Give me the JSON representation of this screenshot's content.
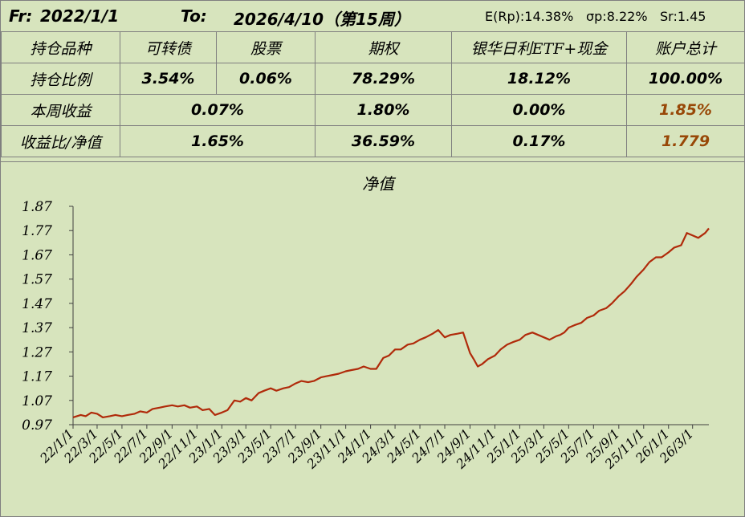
{
  "header": {
    "from_label": "Fr:",
    "from_date": "2022/1/1",
    "to_label": "To:",
    "to_date": "2026/4/10（第15周）",
    "expected_return": "E(Rp):14.38%",
    "sigma": "σp:8.22%",
    "sharpe": "Sr:1.45"
  },
  "table": {
    "headers": [
      "持仓品种",
      "可转债",
      "股票",
      "期权",
      "银华日利ETF+现金",
      "账户总计"
    ],
    "position_ratio": {
      "label": "持仓比例",
      "values": [
        "3.54%",
        "0.06%",
        "78.29%",
        "18.12%",
        "100.00%"
      ]
    },
    "weekly_return": {
      "label": "本周收益",
      "stocks_bonds": "0.07%",
      "options": "1.80%",
      "cash": "0.00%",
      "total": "1.85%"
    },
    "return_nav": {
      "label": "收益比/净值",
      "stocks_bonds": "1.65%",
      "options": "36.59%",
      "cash": "0.17%",
      "total": "1.779"
    }
  },
  "colors": {
    "line": "#b02a0a",
    "accent_text": "#984807",
    "background": "#d7e4bd"
  },
  "chart_data": {
    "type": "line",
    "title": "净值",
    "xlabel": "",
    "ylabel": "",
    "ylim": [
      0.97,
      1.87
    ],
    "yticks": [
      "0.97",
      "1.07",
      "1.17",
      "1.27",
      "1.37",
      "1.47",
      "1.57",
      "1.67",
      "1.77",
      "1.87"
    ],
    "xticks": [
      "22/1/1",
      "22/3/1",
      "22/5/1",
      "22/7/1",
      "22/9/1",
      "22/11/1",
      "23/1/1",
      "23/3/1",
      "23/5/1",
      "23/7/1",
      "23/9/1",
      "23/11/1",
      "24/1/1",
      "24/3/1",
      "24/5/1",
      "24/7/1",
      "24/9/1",
      "24/11/1",
      "25/1/1",
      "25/3/1",
      "25/5/1",
      "25/7/1",
      "25/9/1",
      "25/11/1",
      "26/1/1",
      "26/3/1"
    ],
    "grid": false,
    "legend": "none",
    "series": [
      {
        "x": [
          "2022-01-01",
          "2022-01-20",
          "2022-02-01",
          "2022-02-15",
          "2022-03-01",
          "2022-03-15",
          "2022-04-01",
          "2022-04-15",
          "2022-05-01",
          "2022-05-15",
          "2022-06-01",
          "2022-06-15",
          "2022-07-01",
          "2022-07-15",
          "2022-08-01",
          "2022-08-15",
          "2022-09-01",
          "2022-09-15",
          "2022-10-01",
          "2022-10-15",
          "2022-11-01",
          "2022-11-15",
          "2022-12-01",
          "2022-12-15",
          "2023-01-01",
          "2023-01-15",
          "2023-02-01",
          "2023-02-15",
          "2023-03-01",
          "2023-03-15",
          "2023-04-01",
          "2023-04-15",
          "2023-05-01",
          "2023-05-15",
          "2023-06-01",
          "2023-06-15",
          "2023-07-01",
          "2023-07-15",
          "2023-08-01",
          "2023-08-15",
          "2023-09-01",
          "2023-09-15",
          "2023-10-01",
          "2023-10-15",
          "2023-11-01",
          "2023-11-15",
          "2023-12-01",
          "2023-12-15",
          "2024-01-01",
          "2024-01-15",
          "2024-02-01",
          "2024-02-15",
          "2024-03-01",
          "2024-03-15",
          "2024-04-01",
          "2024-04-15",
          "2024-05-01",
          "2024-05-15",
          "2024-06-01",
          "2024-06-15",
          "2024-07-01",
          "2024-07-15",
          "2024-08-01",
          "2024-08-15",
          "2024-09-01",
          "2024-09-10",
          "2024-09-20",
          "2024-10-01",
          "2024-10-15",
          "2024-11-01",
          "2024-11-15",
          "2024-12-01",
          "2024-12-15",
          "2025-01-01",
          "2025-01-15",
          "2025-02-01",
          "2025-02-15",
          "2025-03-01",
          "2025-03-15",
          "2025-04-01",
          "2025-04-10",
          "2025-04-20",
          "2025-05-01",
          "2025-05-15",
          "2025-06-01",
          "2025-06-15",
          "2025-07-01",
          "2025-07-15",
          "2025-08-01",
          "2025-08-15",
          "2025-09-01",
          "2025-09-15",
          "2025-10-01",
          "2025-10-15",
          "2025-11-01",
          "2025-11-15",
          "2025-12-01",
          "2025-12-15",
          "2026-01-01",
          "2026-01-15",
          "2026-02-01",
          "2026-02-15",
          "2026-03-01",
          "2026-03-15",
          "2026-04-01",
          "2026-04-10"
        ],
        "values": [
          1.0,
          1.01,
          1.005,
          1.02,
          1.015,
          1.0,
          1.005,
          1.01,
          1.005,
          1.01,
          1.015,
          1.025,
          1.02,
          1.035,
          1.04,
          1.045,
          1.05,
          1.045,
          1.05,
          1.04,
          1.045,
          1.03,
          1.035,
          1.01,
          1.02,
          1.03,
          1.07,
          1.065,
          1.08,
          1.07,
          1.1,
          1.11,
          1.12,
          1.11,
          1.12,
          1.125,
          1.14,
          1.15,
          1.145,
          1.15,
          1.165,
          1.17,
          1.175,
          1.18,
          1.19,
          1.195,
          1.2,
          1.21,
          1.2,
          1.2,
          1.245,
          1.255,
          1.28,
          1.28,
          1.3,
          1.305,
          1.32,
          1.33,
          1.345,
          1.36,
          1.33,
          1.34,
          1.345,
          1.35,
          1.265,
          1.24,
          1.21,
          1.22,
          1.24,
          1.255,
          1.28,
          1.3,
          1.31,
          1.32,
          1.34,
          1.35,
          1.34,
          1.33,
          1.32,
          1.335,
          1.34,
          1.35,
          1.37,
          1.38,
          1.39,
          1.41,
          1.42,
          1.44,
          1.45,
          1.47,
          1.5,
          1.52,
          1.55,
          1.58,
          1.61,
          1.64,
          1.66,
          1.66,
          1.68,
          1.7,
          1.71,
          1.76,
          1.75,
          1.74,
          1.76,
          1.779
        ]
      }
    ]
  }
}
